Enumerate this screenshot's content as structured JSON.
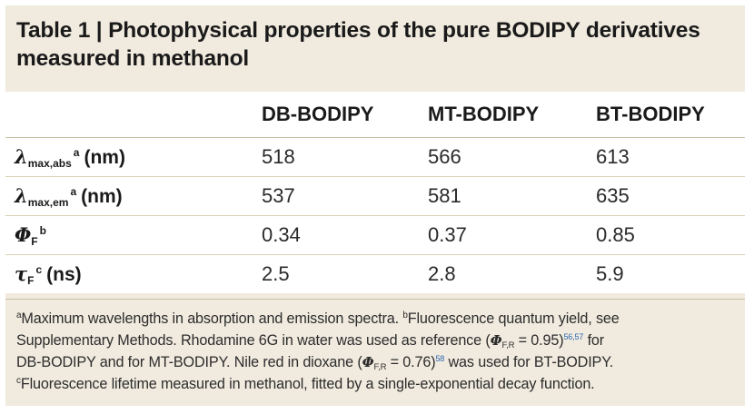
{
  "table": {
    "title": "Table 1 | Photophysical properties of the pure BODIPY derivatives measured in methanol",
    "columns": [
      "",
      "DB-BODIPY",
      "MT-BODIPY",
      "BT-BODIPY"
    ],
    "rows": [
      {
        "symbol": "λ",
        "subscript": "max,abs",
        "superscript": "a",
        "unit": "(nm)",
        "values": [
          "518",
          "566",
          "613"
        ]
      },
      {
        "symbol": "λ",
        "subscript": "max,em",
        "superscript": "a",
        "unit": "(nm)",
        "values": [
          "537",
          "581",
          "635"
        ]
      },
      {
        "symbol": "Φ",
        "subscript": "F",
        "superscript": "b",
        "unit": "",
        "values": [
          "0.34",
          "0.37",
          "0.85"
        ]
      },
      {
        "symbol": "τ",
        "subscript": "F",
        "superscript": "c",
        "unit": "(ns)",
        "values": [
          "2.5",
          "2.8",
          "5.9"
        ]
      }
    ]
  },
  "footnotes": {
    "a_mark": "a",
    "a_text": "Maximum wavelengths in absorption and emission spectra.",
    "b_mark": "b",
    "b_text_1": "Fluorescence quantum yield, see",
    "b_text_2": "Supplementary Methods. Rhodamine 6G in water was used as reference (",
    "phi_symbol": "Φ",
    "phi_sub": "F,R",
    "ref_value_1": " = 0.95)",
    "ref_1": "56,57",
    "b_text_3": " for",
    "b_text_4": "DB-BODIPY and for MT-BODIPY. Nile red in dioxane (",
    "ref_value_2": " = 0.76)",
    "ref_2": "58",
    "b_text_5": " was used for BT-BODIPY.",
    "c_mark": "c",
    "c_text": "Fluorescence lifetime measured in methanol, fitted by a single-exponential decay function."
  },
  "colors": {
    "panel_background": "#f1ebdf",
    "rule": "#dccfb5",
    "reference_link": "#2a68b0"
  }
}
